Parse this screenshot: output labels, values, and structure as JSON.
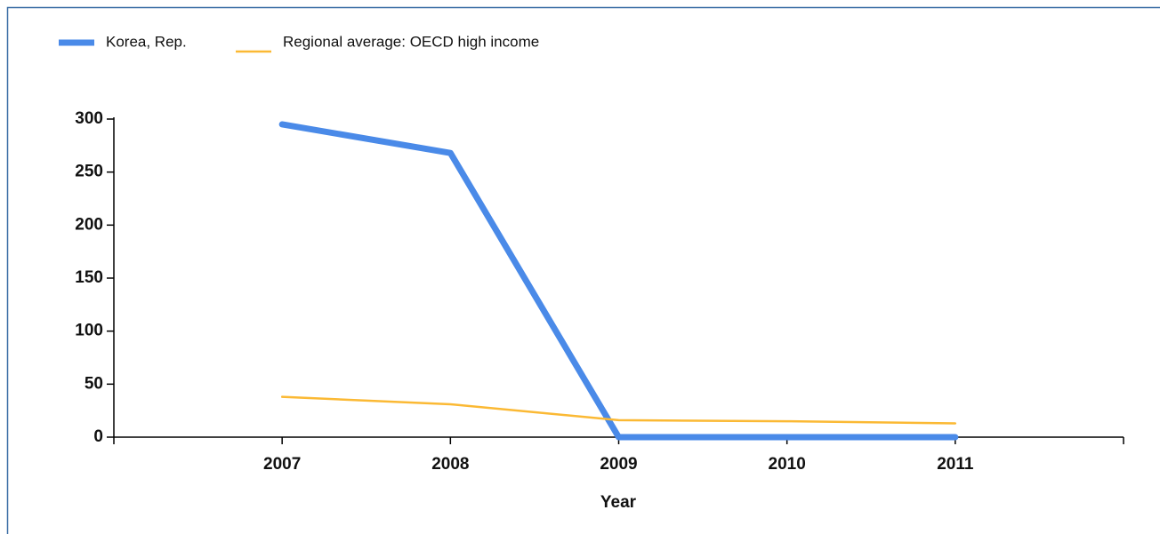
{
  "chart_data": {
    "type": "line",
    "x_label": "Year",
    "categories": [
      "2007",
      "2008",
      "2009",
      "2010",
      "2011"
    ],
    "series": [
      {
        "name": "Korea, Rep.",
        "color": "#4a8ae8",
        "values": [
          295,
          268,
          0,
          0,
          0
        ]
      },
      {
        "name": "Regional average: OECD high income",
        "color": "#fbb934",
        "values": [
          38,
          31,
          16,
          15,
          13
        ]
      }
    ],
    "ylim": [
      0,
      300
    ],
    "yticks": [
      0,
      50,
      100,
      150,
      200,
      250,
      300
    ],
    "legend": "top-left"
  }
}
